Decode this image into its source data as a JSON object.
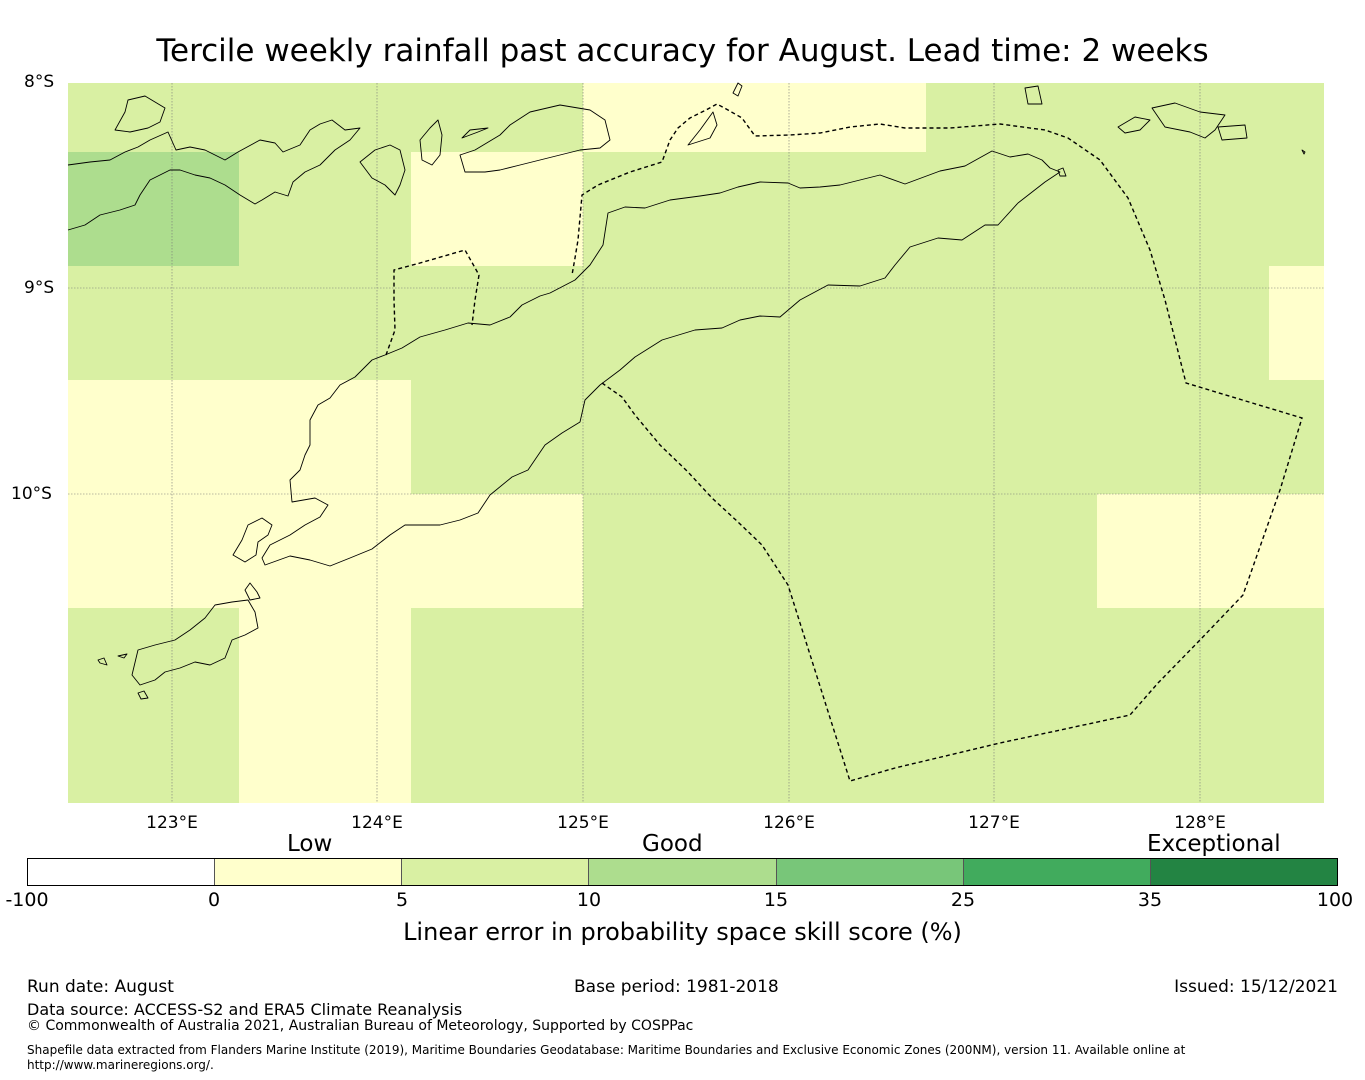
{
  "title": "Tercile weekly rainfall past accuracy for August. Lead time: 2 weeks",
  "map": {
    "lat_labels": [
      "8°S",
      "9°S",
      "10°S"
    ],
    "lon_labels": [
      "123°E",
      "124°E",
      "125°E",
      "126°E",
      "127°E",
      "128°E"
    ],
    "lon_range": [
      122.5,
      128.6
    ],
    "lat_range": [
      -11.5,
      -8.0
    ],
    "grid_colors": {
      "low": "#ffffcc",
      "good_5_10": "#d9f0a3",
      "good_10_15": "#addd8e"
    }
  },
  "colorbar": {
    "category_labels": [
      "Low",
      "Good",
      "Exceptional"
    ],
    "tick_labels": [
      "-100",
      "0",
      "5",
      "10",
      "15",
      "25",
      "35",
      "100"
    ],
    "colors": [
      "#ffffff",
      "#ffffcc",
      "#d9f0a3",
      "#addd8e",
      "#78c679",
      "#41ab5d",
      "#238443"
    ],
    "label": "Linear error in probability space skill score (%)"
  },
  "footer": {
    "run_date": "Run date: August",
    "base_period": "Base period: 1981-2018",
    "issued": "Issued: 15/12/2021",
    "data_source": "Data source: ACCESS-S2 and ERA5 Climate Reanalysis",
    "copyright": "© Commonwealth of Australia 2021, Australian Bureau of Meteorology, Supported by COSPPac",
    "shapefile_note": "Shapefile data extracted from Flanders Marine Institute (2019), Maritime Boundaries Geodatabase: Maritime Boundaries and Exclusive Economic Zones (200NM), version 11. Available online at http://www.marineregions.org/."
  }
}
